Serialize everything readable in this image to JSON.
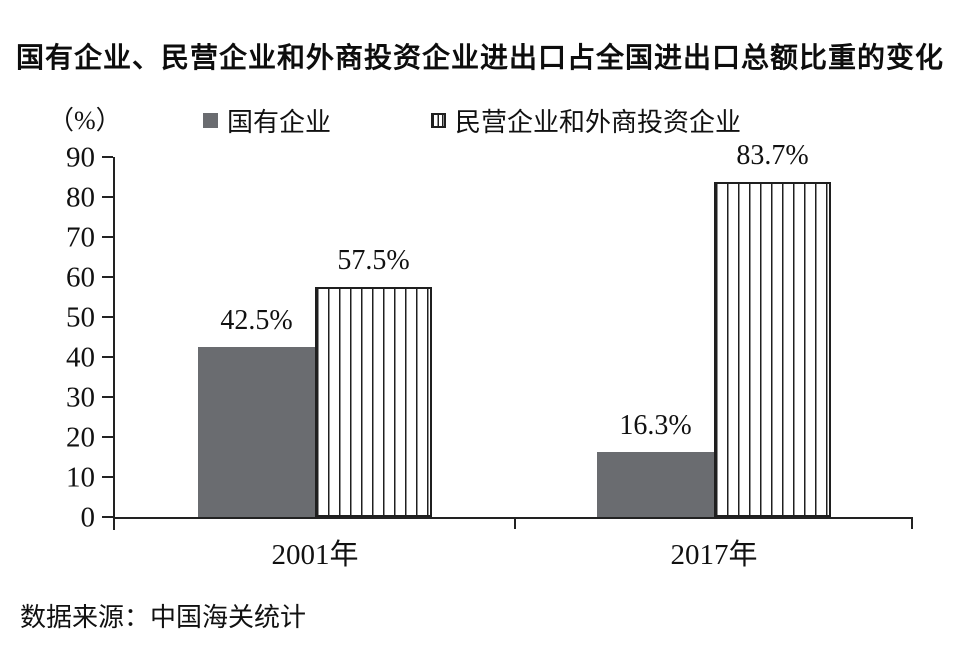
{
  "title": "国有企业、民营企业和外商投资企业进出口占全国进出口总额比重的变化",
  "unit_label": "（%）",
  "source": "数据来源：中国海关统计",
  "legend": [
    {
      "label": "国有企业",
      "style": "solid"
    },
    {
      "label": "民营企业和外商投资企业",
      "style": "striped"
    }
  ],
  "colors": {
    "solid_bar": "#6a6c70",
    "stripe_line": "#1f1f1f",
    "axis": "#222222",
    "text": "#111111",
    "background": "#ffffff"
  },
  "chart_data": {
    "type": "bar",
    "title": "国有企业、民营企业和外商投资企业进出口占全国进出口总额比重的变化",
    "ylabel": "（%）",
    "xlabel": "",
    "categories": [
      "2001年",
      "2017年"
    ],
    "series": [
      {
        "name": "国有企业",
        "pattern": "solid",
        "values": [
          42.5,
          16.3
        ],
        "labels": [
          "42.5%",
          "16.3%"
        ]
      },
      {
        "name": "民营企业和外商投资企业",
        "pattern": "striped",
        "values": [
          57.5,
          83.7
        ],
        "labels": [
          "57.5%",
          "83.7%"
        ]
      }
    ],
    "ylim": [
      0,
      90
    ],
    "yticks": [
      0,
      10,
      20,
      30,
      40,
      50,
      60,
      70,
      80,
      90
    ],
    "grid": false,
    "legend_position": "top",
    "source": "数据来源：中国海关统计"
  }
}
